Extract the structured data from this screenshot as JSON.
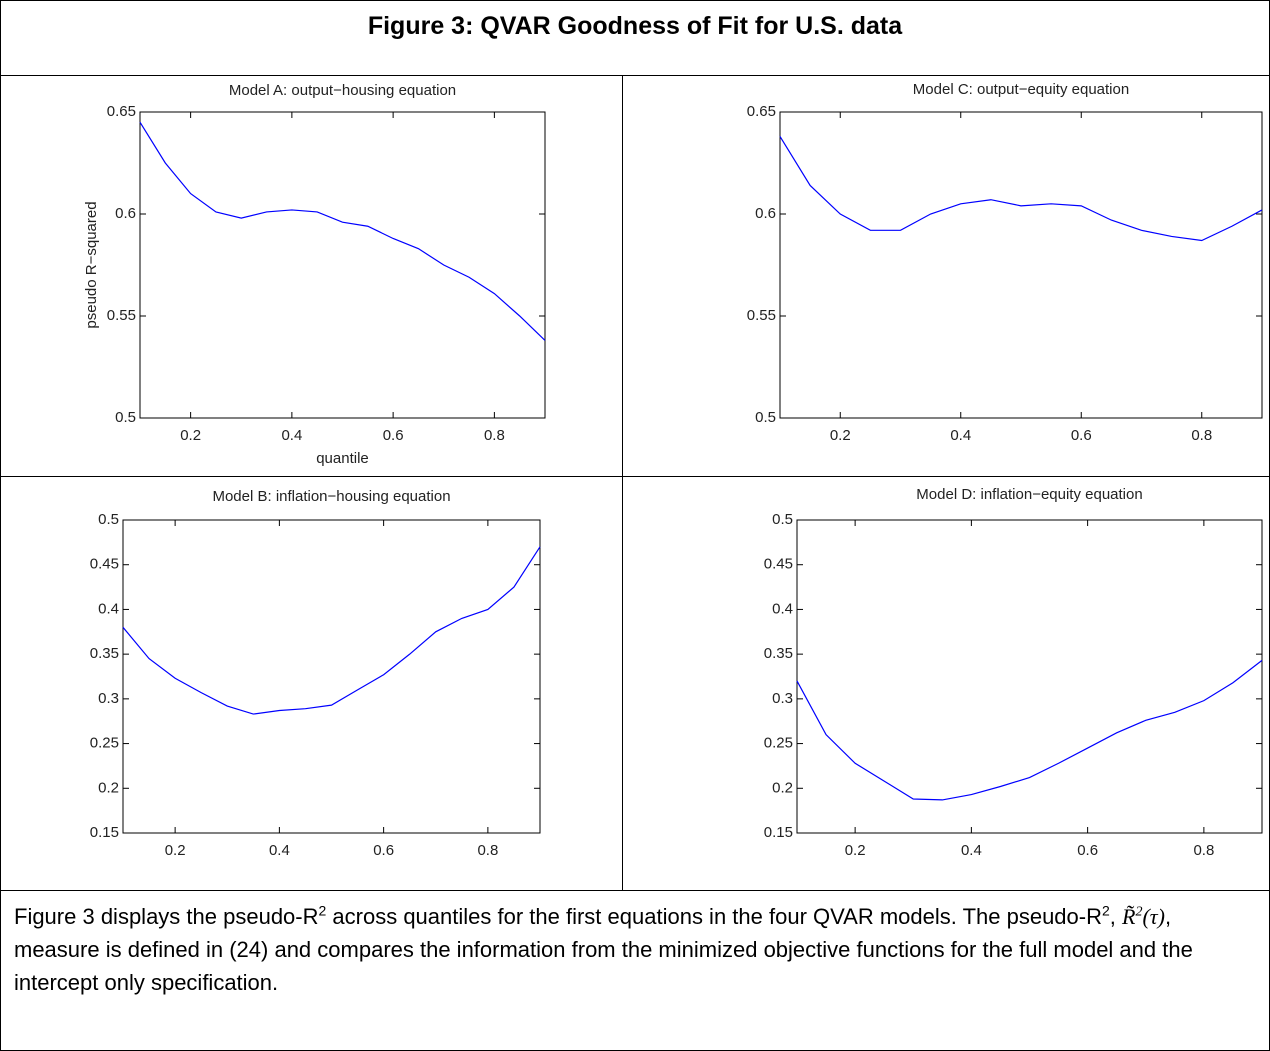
{
  "title": "Figure 3: QVAR Goodness of Fit for U.S. data",
  "caption": [
    "Figure 3 displays the pseudo-R",
    "2",
    " across quantiles for the first equations in the four QVAR models.  The pseudo-R",
    "2",
    ",  ",
    "R̃",
    "2",
    "(τ)",
    ", measure is defined in (24) and compares the information from the minimized objective functions for the full model and the intercept only specification."
  ],
  "chart_data": [
    {
      "type": "line",
      "title": "Model A: output−housing equation",
      "y_label": "pseudo R−squared",
      "x_label": "quantile",
      "x": [
        0.1,
        0.15,
        0.2,
        0.25,
        0.3,
        0.35,
        0.4,
        0.45,
        0.5,
        0.55,
        0.6,
        0.65,
        0.7,
        0.75,
        0.8,
        0.85,
        0.9
      ],
      "series": [
        {
          "color": "#0000ff",
          "values": [
            0.645,
            0.625,
            0.61,
            0.601,
            0.598,
            0.601,
            0.602,
            0.601,
            0.596,
            0.594,
            0.588,
            0.583,
            0.575,
            0.569,
            0.561,
            0.55,
            0.538
          ]
        }
      ],
      "xlim": [
        0.1,
        0.9
      ],
      "xticks": [
        0.2,
        0.4,
        0.6,
        0.8
      ],
      "ylim": [
        0.5,
        0.65
      ],
      "yticks": [
        0.5,
        0.55,
        0.6,
        0.65
      ]
    },
    {
      "type": "line",
      "title": "Model C: output−equity equation",
      "x": [
        0.1,
        0.15,
        0.2,
        0.25,
        0.3,
        0.35,
        0.4,
        0.45,
        0.5,
        0.55,
        0.6,
        0.65,
        0.7,
        0.75,
        0.8,
        0.85,
        0.9
      ],
      "series": [
        {
          "color": "#0000ff",
          "values": [
            0.638,
            0.614,
            0.6,
            0.592,
            0.592,
            0.6,
            0.605,
            0.607,
            0.604,
            0.605,
            0.604,
            0.597,
            0.592,
            0.589,
            0.587,
            0.594,
            0.602
          ]
        }
      ],
      "xlim": [
        0.1,
        0.9
      ],
      "xticks": [
        0.2,
        0.4,
        0.6,
        0.8
      ],
      "ylim": [
        0.5,
        0.65
      ],
      "yticks": [
        0.5,
        0.55,
        0.6,
        0.65
      ]
    },
    {
      "type": "line",
      "title": "Model B: inflation−housing equation",
      "x": [
        0.1,
        0.15,
        0.2,
        0.25,
        0.3,
        0.35,
        0.4,
        0.45,
        0.5,
        0.55,
        0.6,
        0.65,
        0.7,
        0.75,
        0.8,
        0.85,
        0.9
      ],
      "series": [
        {
          "color": "#0000ff",
          "values": [
            0.38,
            0.345,
            0.323,
            0.307,
            0.292,
            0.283,
            0.287,
            0.289,
            0.293,
            0.31,
            0.327,
            0.35,
            0.375,
            0.39,
            0.4,
            0.425,
            0.47
          ]
        }
      ],
      "xlim": [
        0.1,
        0.9
      ],
      "xticks": [
        0.2,
        0.4,
        0.6,
        0.8
      ],
      "ylim": [
        0.15,
        0.5
      ],
      "yticks": [
        0.15,
        0.2,
        0.25,
        0.3,
        0.35,
        0.4,
        0.45,
        0.5
      ]
    },
    {
      "type": "line",
      "title": "Model D: inflation−equity equation",
      "x": [
        0.1,
        0.15,
        0.2,
        0.25,
        0.3,
        0.35,
        0.4,
        0.45,
        0.5,
        0.55,
        0.6,
        0.65,
        0.7,
        0.75,
        0.8,
        0.85,
        0.9
      ],
      "series": [
        {
          "color": "#0000ff",
          "values": [
            0.32,
            0.26,
            0.228,
            0.208,
            0.188,
            0.187,
            0.193,
            0.202,
            0.212,
            0.228,
            0.245,
            0.262,
            0.276,
            0.285,
            0.298,
            0.318,
            0.343
          ]
        }
      ],
      "xlim": [
        0.1,
        0.9
      ],
      "xticks": [
        0.2,
        0.4,
        0.6,
        0.8
      ],
      "ylim": [
        0.15,
        0.5
      ],
      "yticks": [
        0.15,
        0.2,
        0.25,
        0.3,
        0.35,
        0.4,
        0.45,
        0.5
      ]
    }
  ]
}
